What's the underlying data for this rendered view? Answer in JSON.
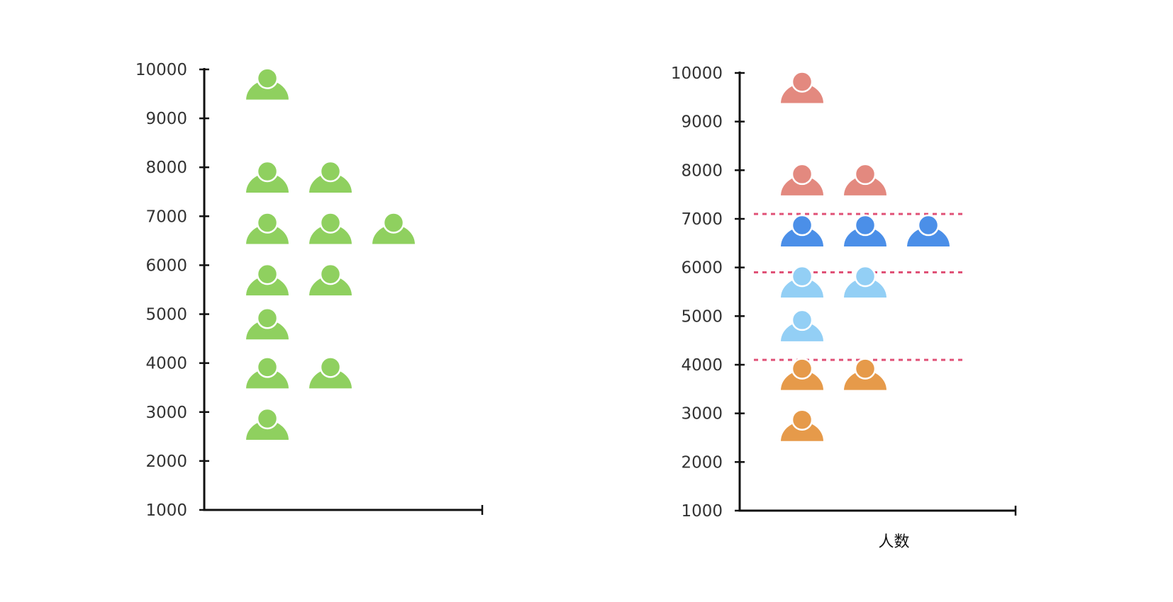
{
  "chart_data": [
    {
      "type": "scatter",
      "title": "",
      "xlabel": "",
      "ylabel": "",
      "ylim": [
        1000,
        10000
      ],
      "yticks": [
        1000,
        2000,
        3000,
        4000,
        5000,
        6000,
        7000,
        8000,
        9000,
        10000
      ],
      "marker": "person-icon",
      "marker_color": "#8fd05f",
      "points": [
        {
          "y": 9600,
          "count": 1
        },
        {
          "y": 7700,
          "count": 2
        },
        {
          "y": 6650,
          "count": 3
        },
        {
          "y": 5600,
          "count": 2
        },
        {
          "y": 4700,
          "count": 1
        },
        {
          "y": 3700,
          "count": 2
        },
        {
          "y": 2650,
          "count": 1
        }
      ]
    },
    {
      "type": "scatter",
      "title": "",
      "xlabel": "人数",
      "ylabel": "",
      "ylim": [
        1000,
        10000
      ],
      "yticks": [
        1000,
        2000,
        3000,
        4000,
        5000,
        6000,
        7000,
        8000,
        9000,
        10000
      ],
      "marker": "person-icon",
      "thresholds": [
        7100,
        5900,
        4100
      ],
      "threshold_color": "#e05277",
      "points": [
        {
          "y": 9600,
          "count": 1,
          "color": "#e3897f"
        },
        {
          "y": 7700,
          "count": 2,
          "color": "#e3897f"
        },
        {
          "y": 6650,
          "count": 3,
          "color": "#4b8fe8"
        },
        {
          "y": 5600,
          "count": 2,
          "color": "#93cff5"
        },
        {
          "y": 4700,
          "count": 1,
          "color": "#93cff5"
        },
        {
          "y": 3700,
          "count": 2,
          "color": "#e69a4a"
        },
        {
          "y": 2650,
          "count": 1,
          "color": "#e69a4a"
        }
      ]
    }
  ]
}
